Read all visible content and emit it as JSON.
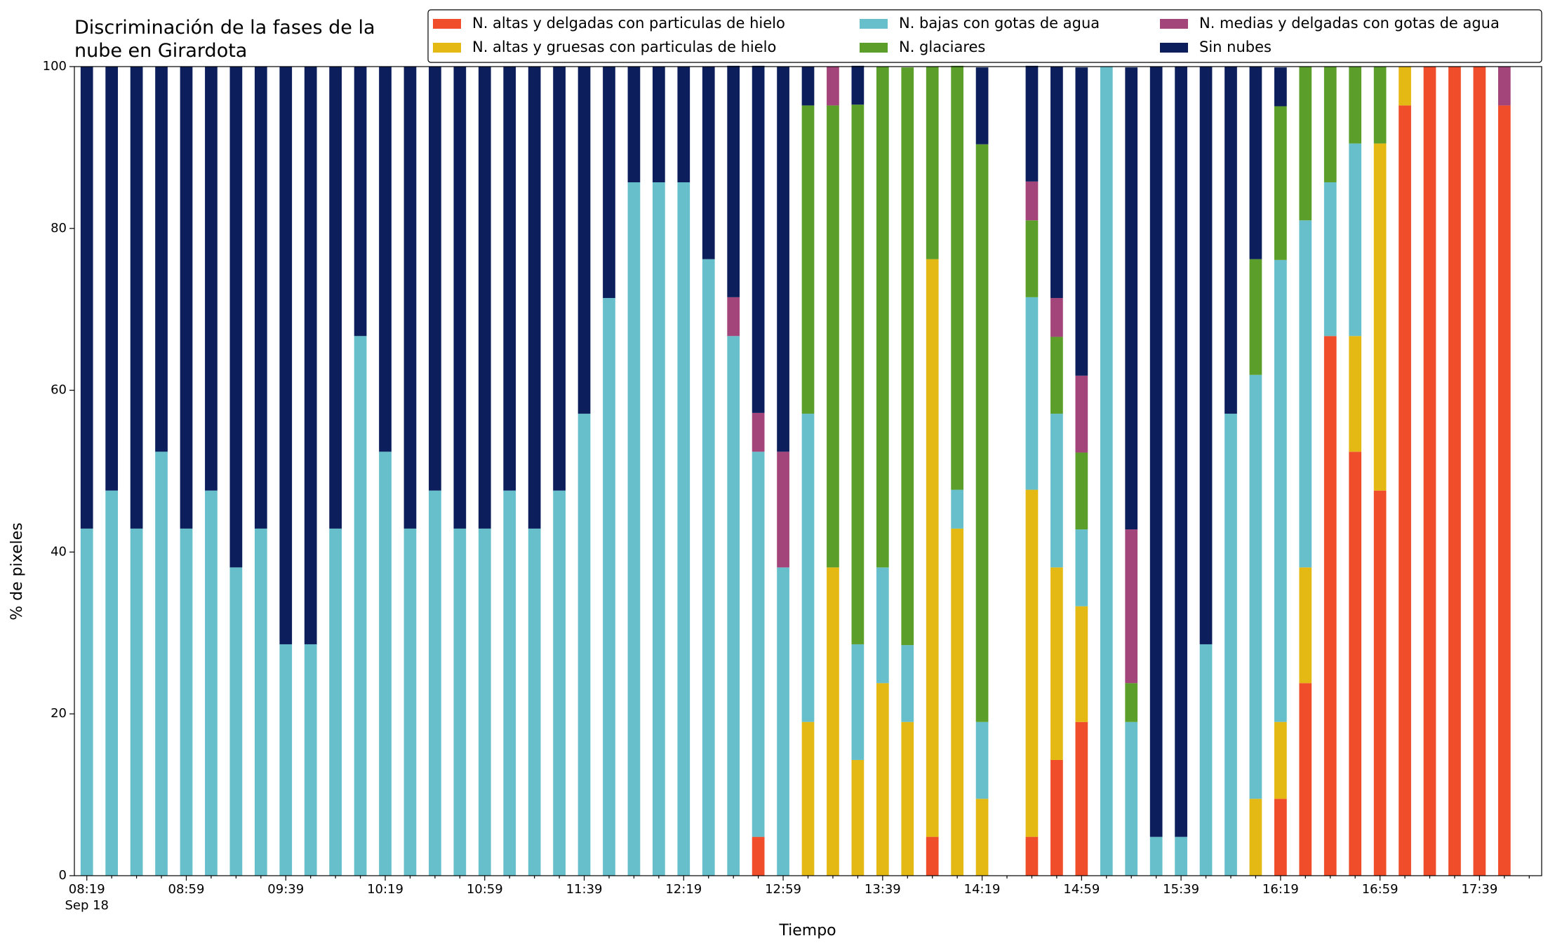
{
  "chart_data": {
    "type": "stacked_bar",
    "title": "Discriminación de la fases de la\nnube en Girardota",
    "xlabel": "Tiempo",
    "ylabel": "% de pixeles",
    "x_sublabel": "Sep 18",
    "categories": [
      "08:19",
      null,
      null,
      null,
      "08:59",
      null,
      null,
      null,
      "09:39",
      null,
      null,
      null,
      "10:19",
      null,
      null,
      null,
      "10:59",
      null,
      null,
      null,
      "11:39",
      null,
      null,
      null,
      "12:19",
      null,
      null,
      null,
      "12:59",
      null,
      null,
      null,
      "13:39",
      null,
      null,
      null,
      "14:19",
      null,
      null,
      null,
      "14:59",
      null,
      null,
      null,
      "15:39",
      null,
      null,
      null,
      "16:19",
      null,
      null,
      null,
      "16:59",
      null,
      null,
      null,
      "17:39",
      null
    ],
    "ylim": [
      0,
      100
    ],
    "yticks": [
      0,
      20,
      40,
      60,
      80,
      100
    ],
    "grid": false,
    "legend": "upper right",
    "series": [
      {
        "name": "N. altas y delgadas con particulas de hielo",
        "color": "#f04d2a",
        "values": [
          0,
          0,
          0,
          0,
          0,
          0,
          0,
          0,
          0,
          0,
          0,
          0,
          0,
          0,
          0,
          0,
          0,
          0,
          0,
          0,
          0,
          0,
          0,
          0,
          0,
          0,
          0,
          4.8,
          0,
          0,
          0,
          0,
          0,
          0,
          4.8,
          0,
          0,
          0,
          4.8,
          14.3,
          19.0,
          0,
          0,
          0,
          0,
          0,
          0,
          0,
          9.5,
          23.8,
          66.7,
          52.4,
          47.6,
          95.2,
          100,
          100,
          100,
          95.2
        ]
      },
      {
        "name": "N. altas y gruesas con particulas de hielo",
        "color": "#e5b914",
        "values": [
          0,
          0,
          0,
          0,
          0,
          0,
          0,
          0,
          0,
          0,
          0,
          0,
          0,
          0,
          0,
          0,
          0,
          0,
          0,
          0,
          0,
          0,
          0,
          0,
          0,
          0,
          0,
          0,
          0,
          19.0,
          38.1,
          14.3,
          23.8,
          19.0,
          71.4,
          42.9,
          9.5,
          0,
          42.9,
          23.8,
          14.3,
          0,
          0,
          0,
          0,
          0,
          0,
          9.5,
          9.5,
          14.3,
          0,
          14.3,
          42.9,
          4.8,
          0,
          0,
          0,
          0
        ]
      },
      {
        "name": "N. bajas con gotas de agua",
        "color": "#67bfcb",
        "values": [
          42.9,
          47.6,
          42.9,
          52.4,
          42.9,
          47.6,
          38.1,
          42.9,
          28.6,
          28.6,
          42.9,
          66.7,
          52.4,
          42.9,
          47.6,
          42.9,
          42.9,
          47.6,
          42.9,
          47.6,
          57.1,
          71.4,
          85.7,
          85.7,
          85.7,
          76.2,
          66.7,
          47.6,
          38.1,
          38.1,
          0,
          14.3,
          14.3,
          9.5,
          0,
          4.8,
          9.5,
          0,
          23.8,
          19.0,
          9.5,
          100,
          19.0,
          4.8,
          4.8,
          28.6,
          57.1,
          52.4,
          57.1,
          42.9,
          19.0,
          23.8,
          0,
          0,
          0,
          0,
          0,
          0
        ]
      },
      {
        "name": "N. glaciares",
        "color": "#5c9e2a",
        "values": [
          0,
          0,
          0,
          0,
          0,
          0,
          0,
          0,
          0,
          0,
          0,
          0,
          0,
          0,
          0,
          0,
          0,
          0,
          0,
          0,
          0,
          0,
          0,
          0,
          0,
          0,
          0,
          0,
          0,
          38.1,
          57.1,
          66.7,
          61.9,
          71.4,
          23.8,
          52.4,
          71.4,
          0,
          9.5,
          9.5,
          9.5,
          0,
          4.8,
          0,
          0,
          0,
          0,
          14.3,
          19.0,
          19.0,
          14.3,
          9.5,
          9.5,
          0,
          0,
          0,
          0,
          0
        ]
      },
      {
        "name": "N. medias y delgadas con gotas de agua",
        "color": "#a3457a",
        "values": [
          0,
          0,
          0,
          0,
          0,
          0,
          0,
          0,
          0,
          0,
          0,
          0,
          0,
          0,
          0,
          0,
          0,
          0,
          0,
          0,
          0,
          0,
          0,
          0,
          0,
          0,
          4.8,
          4.8,
          14.3,
          0,
          4.8,
          0,
          0,
          0,
          0,
          0,
          0,
          0,
          4.8,
          4.8,
          9.5,
          0,
          19.0,
          0,
          0,
          0,
          0,
          0,
          0,
          0,
          0,
          0,
          0,
          0,
          0,
          0,
          0,
          4.8
        ]
      },
      {
        "name": "Sin nubes",
        "color": "#0c1f5c",
        "values": [
          57.1,
          52.4,
          57.1,
          47.6,
          57.1,
          52.4,
          61.9,
          57.1,
          71.4,
          71.4,
          57.1,
          33.3,
          47.6,
          57.1,
          52.4,
          57.1,
          57.1,
          52.4,
          57.1,
          52.4,
          42.9,
          28.6,
          14.3,
          14.3,
          14.3,
          23.8,
          28.6,
          42.9,
          47.6,
          4.8,
          0,
          4.8,
          0,
          0,
          0,
          0,
          9.5,
          0,
          14.3,
          28.6,
          38.1,
          0,
          57.1,
          95.2,
          95.2,
          71.4,
          42.9,
          23.8,
          4.8,
          0,
          0,
          0,
          0,
          0,
          0,
          0,
          0,
          0
        ]
      }
    ]
  }
}
